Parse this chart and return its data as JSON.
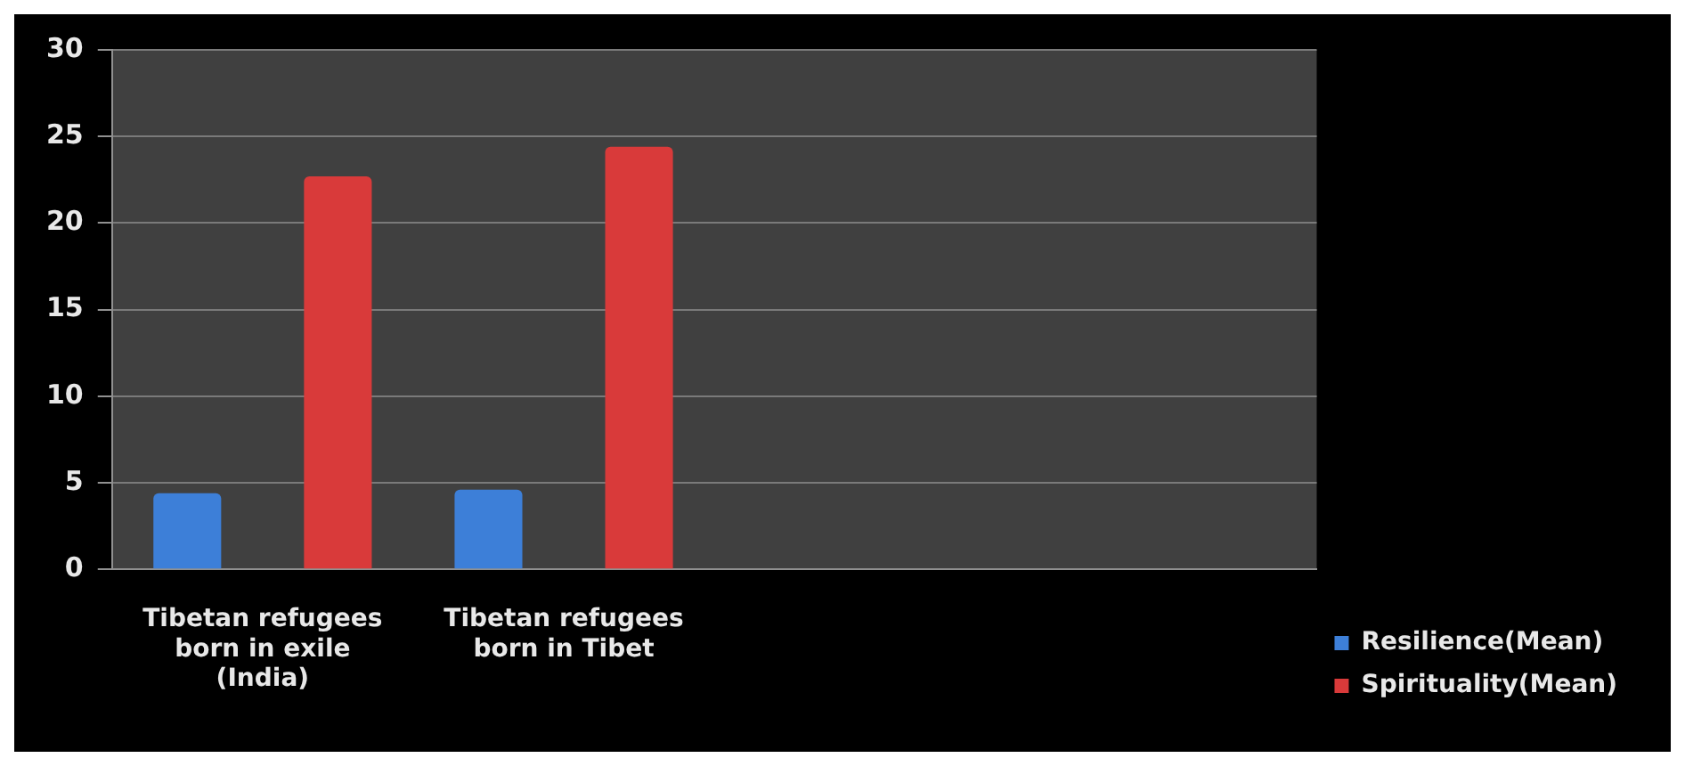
{
  "chart_data": {
    "type": "bar",
    "categories": [
      "Tibetan refugees born in exile (India)",
      "Tibetan refugees born in Tibet",
      null,
      null
    ],
    "series": [
      {
        "name": "Resilience(Mean)",
        "color": "#3d7fd8",
        "values": [
          4.4,
          4.6,
          null,
          null
        ]
      },
      {
        "name": "Spirituality(Mean)",
        "color": "#d93a3a",
        "values": [
          22.7,
          24.4,
          null,
          null
        ]
      }
    ],
    "ylim": [
      0,
      30
    ],
    "yticks": [
      0,
      5,
      10,
      15,
      20,
      25,
      30
    ],
    "grid": "y",
    "legend": "bottom right"
  }
}
